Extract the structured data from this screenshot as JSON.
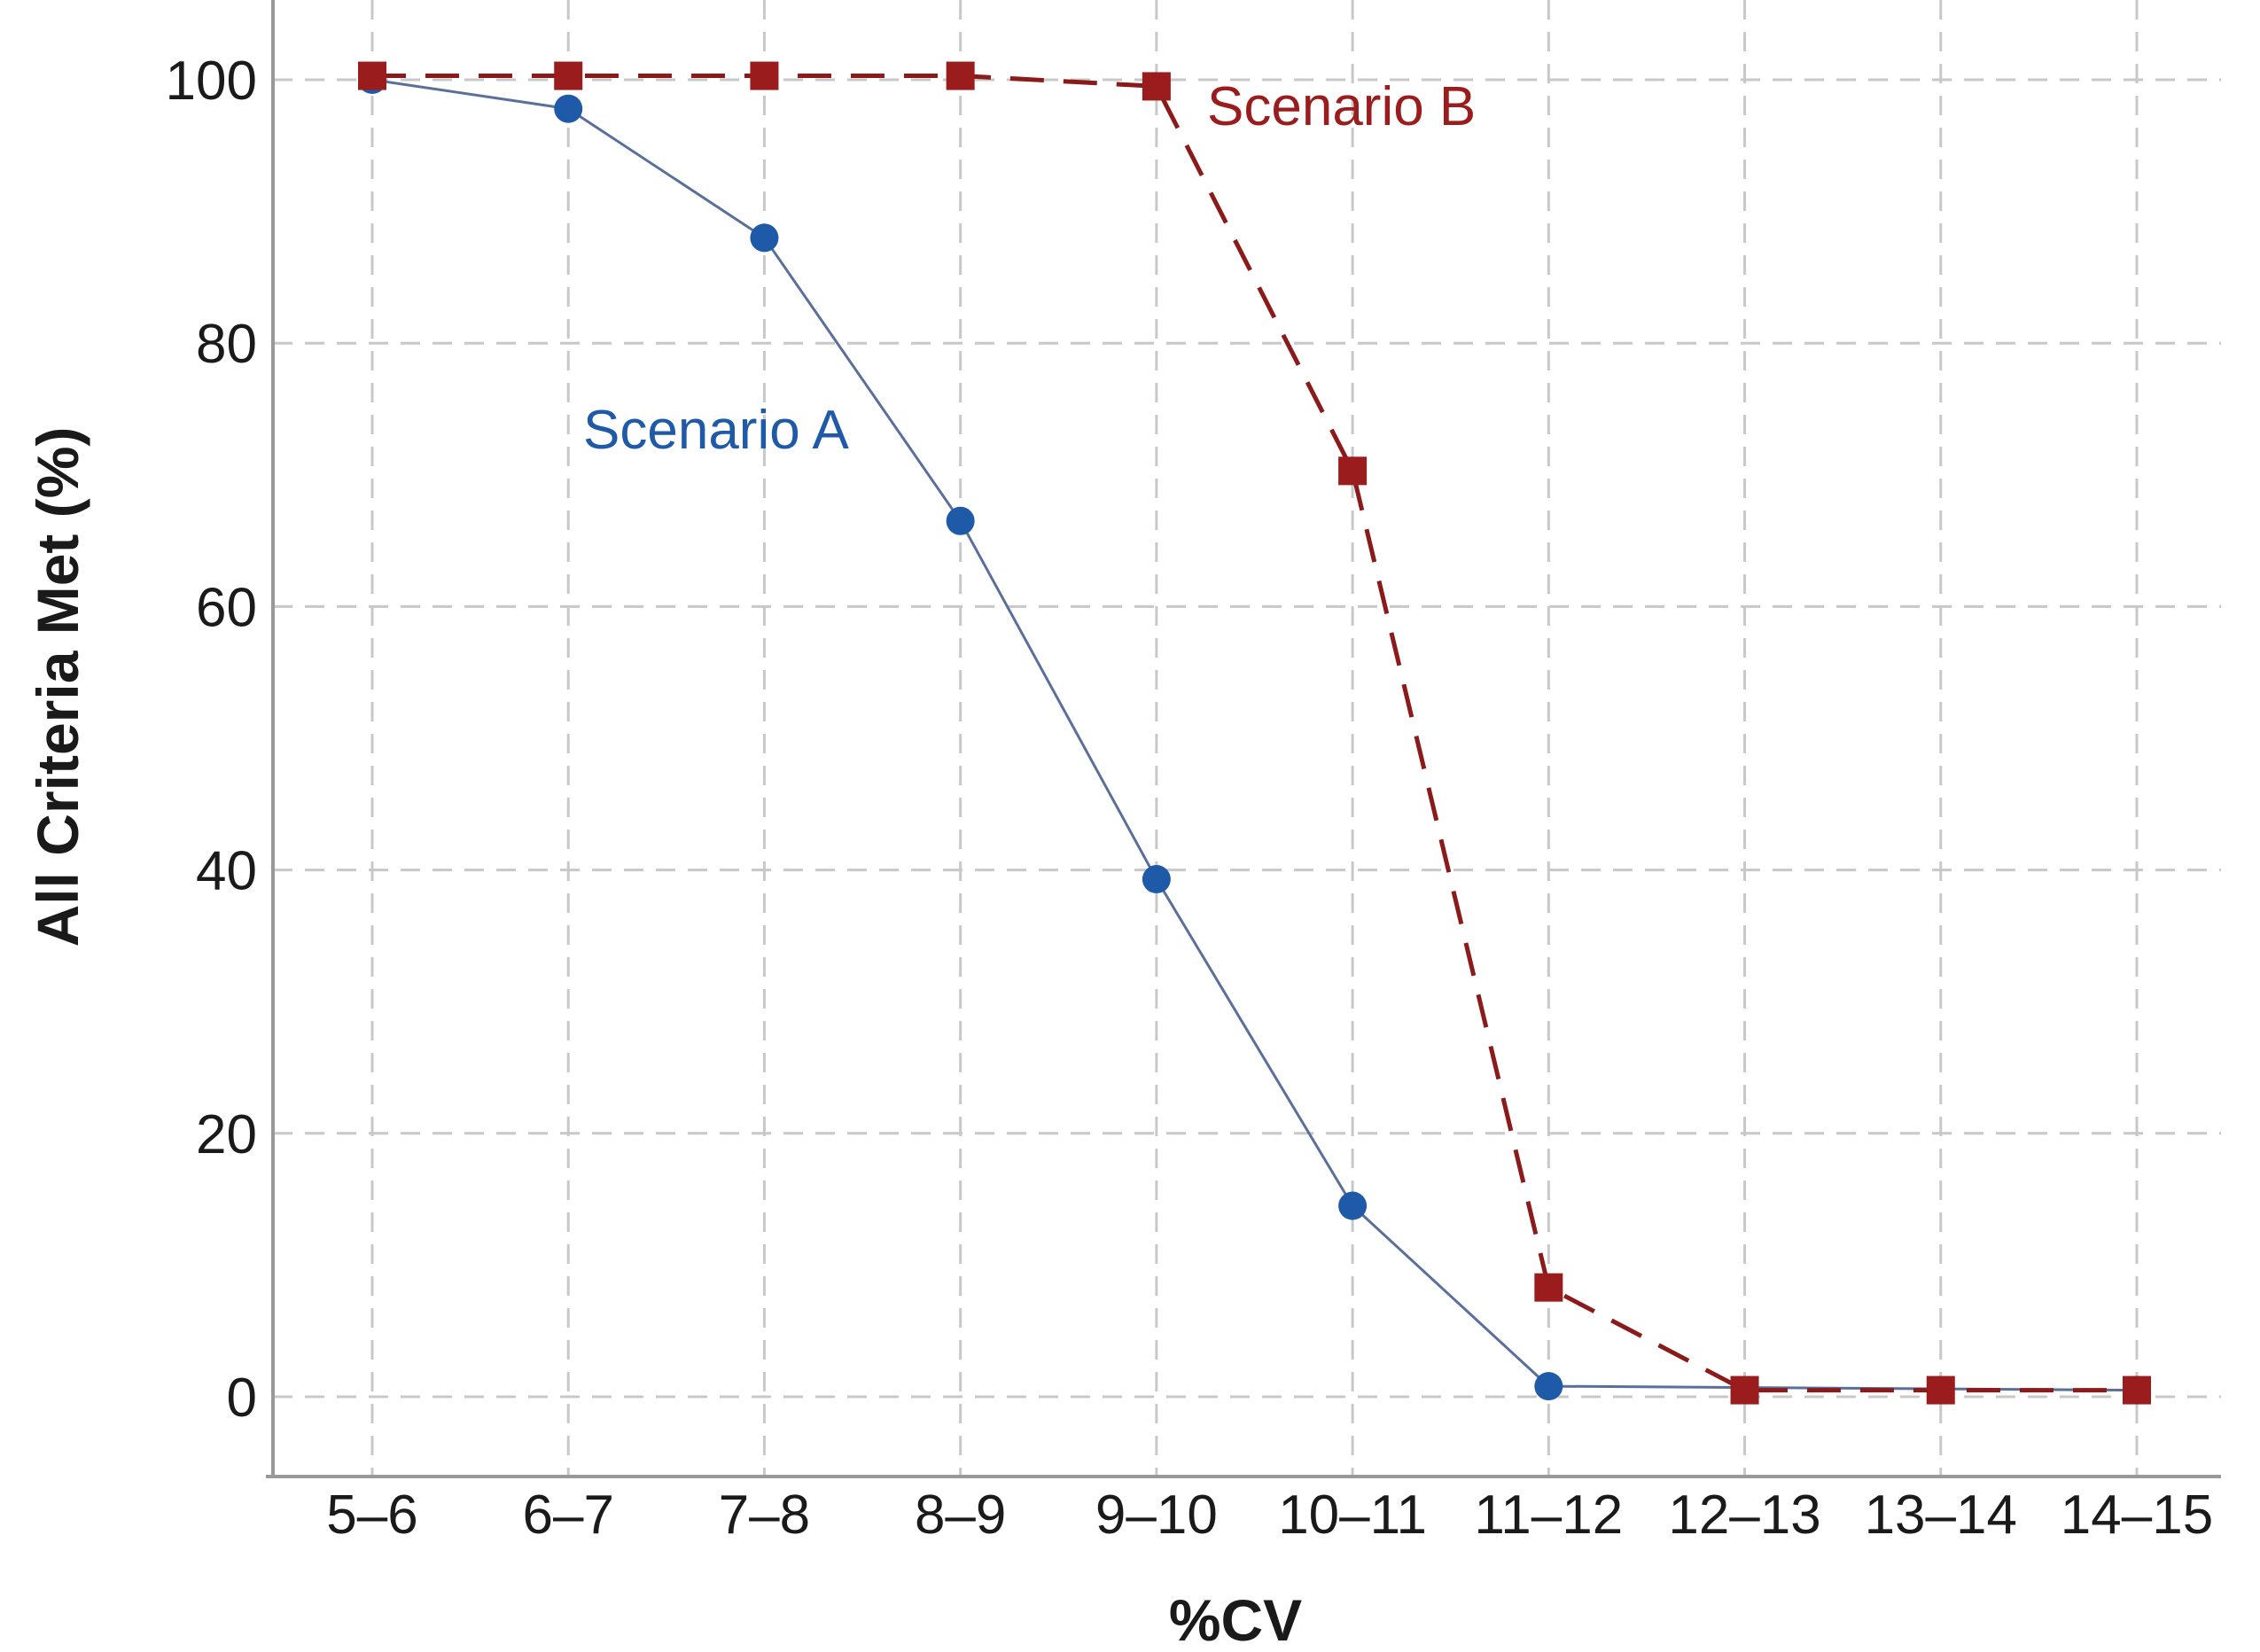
{
  "chart_data": {
    "type": "line",
    "title": "",
    "xlabel": "%CV",
    "ylabel": "All Criteria Met (%)",
    "categories": [
      "5–6",
      "6–7",
      "7–8",
      "8–9",
      "9–10",
      "10–11",
      "11–12",
      "12–13",
      "13–14",
      "14–15"
    ],
    "ylim": [
      -6,
      106
    ],
    "yticks": [
      0,
      20,
      40,
      60,
      80,
      100
    ],
    "grid": true,
    "legend": "none",
    "series": [
      {
        "name": "Scenario A",
        "color": "#1f5aa8",
        "line_color": "#5a6f99",
        "marker": "circle",
        "line_style": "solid",
        "values": [
          100,
          97.8,
          88,
          66.5,
          39.3,
          14.5,
          0.8,
          null,
          null,
          0.5
        ]
      },
      {
        "name": "Scenario B",
        "color": "#9b1c1c",
        "line_color": "#8b1a1a",
        "marker": "square",
        "line_style": "dashed",
        "values": [
          100.3,
          100.3,
          100.3,
          100.3,
          99.5,
          70.3,
          8.3,
          0.5,
          0.5,
          0.5
        ]
      }
    ],
    "annotations": [
      {
        "text": "Scenario A",
        "series": 0
      },
      {
        "text": "Scenario B",
        "series": 1
      }
    ]
  }
}
